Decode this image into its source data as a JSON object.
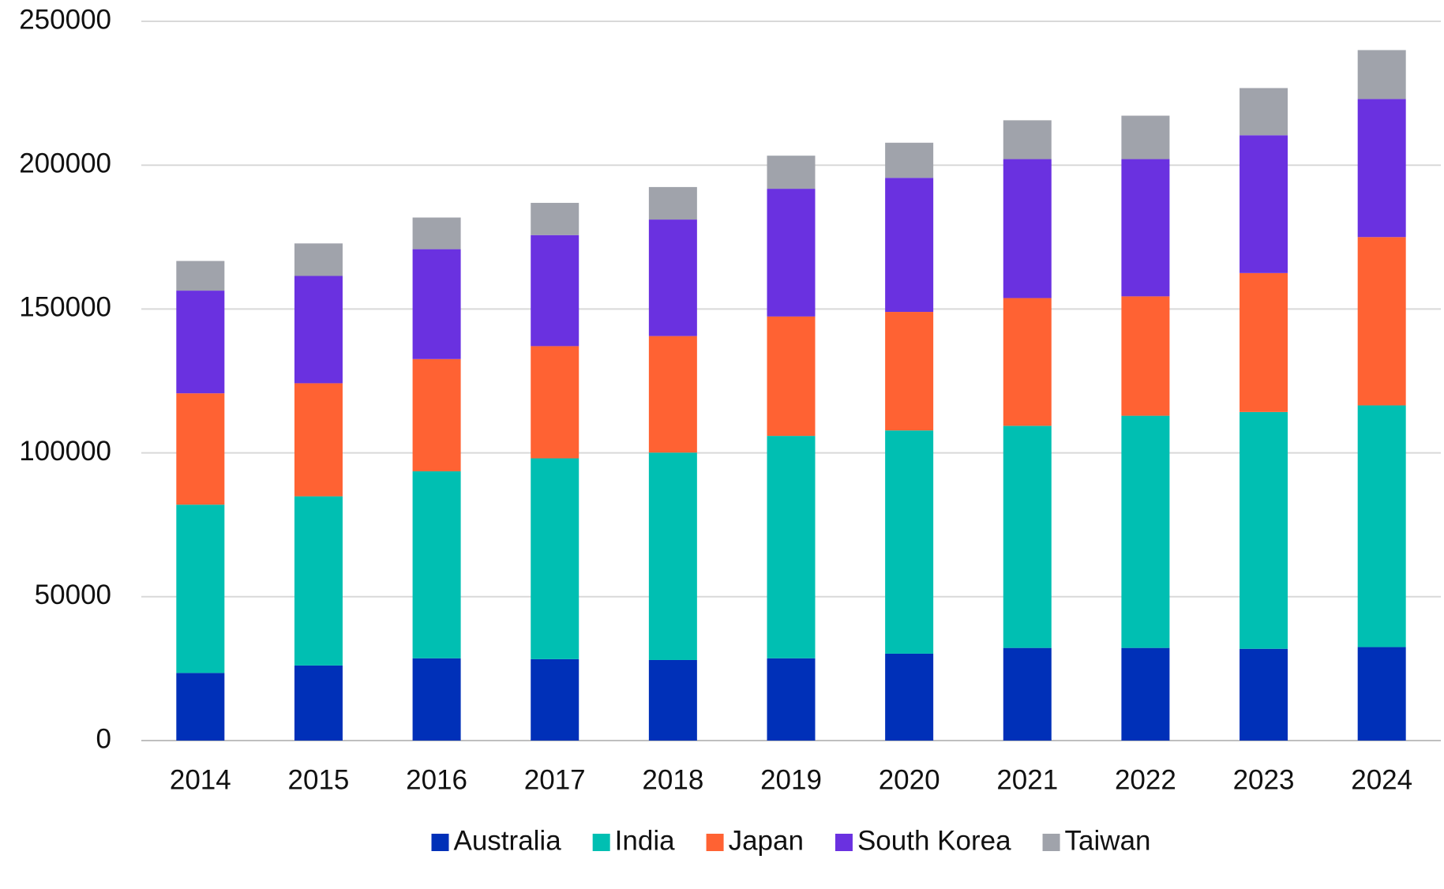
{
  "chart_data": {
    "type": "stacked_bar",
    "categories": [
      "2014",
      "2015",
      "2016",
      "2017",
      "2018",
      "2019",
      "2020",
      "2021",
      "2022",
      "2023",
      "2024"
    ],
    "series": [
      {
        "name": "Australia",
        "color": "#0030b8",
        "values": [
          23500,
          26100,
          28600,
          28300,
          28000,
          28600,
          30200,
          32200,
          32200,
          31900,
          32500
        ]
      },
      {
        "name": "India",
        "color": "#00bfb2",
        "values": [
          58500,
          58800,
          65000,
          69800,
          72100,
          77300,
          77600,
          77200,
          80700,
          82300,
          84000
        ]
      },
      {
        "name": "Japan",
        "color": "#ff6233",
        "values": [
          38700,
          39300,
          39000,
          39000,
          40500,
          41500,
          41200,
          44400,
          41500,
          48300,
          58500
        ]
      },
      {
        "name": "South Korea",
        "color": "#6a31e0",
        "values": [
          35700,
          37300,
          38200,
          38600,
          40500,
          44400,
          46600,
          48300,
          47700,
          47900,
          48000
        ]
      },
      {
        "name": "Taiwan",
        "color": "#a0a3ab",
        "values": [
          10300,
          11300,
          11000,
          11200,
          11300,
          11500,
          12200,
          13500,
          15100,
          16400,
          17000
        ]
      }
    ],
    "ylim": [
      0,
      250000
    ],
    "yticks": [
      0,
      50000,
      100000,
      150000,
      200000,
      250000
    ],
    "grid": true,
    "legend": "bottom"
  }
}
